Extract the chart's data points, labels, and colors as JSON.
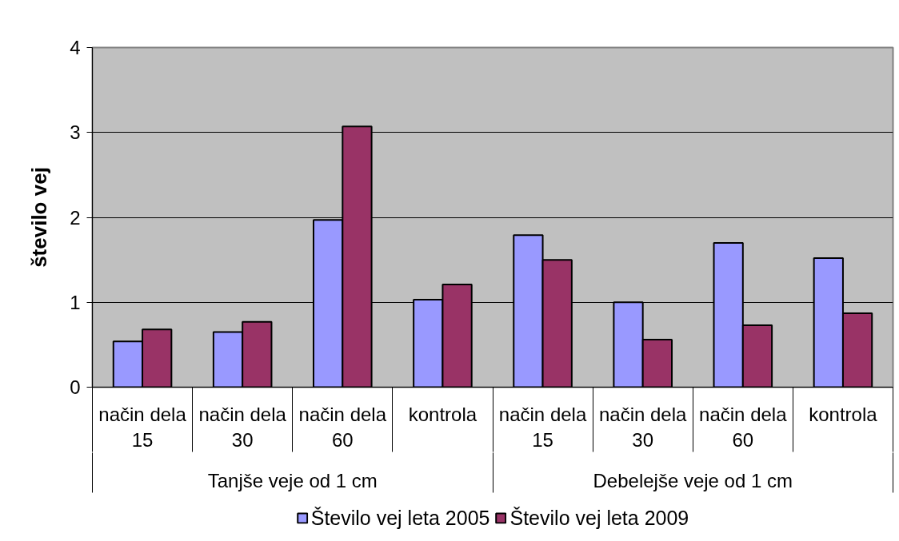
{
  "chart_data": {
    "type": "bar",
    "ylabel": "število vej",
    "categories": [
      "način dela 15",
      "način dela 30",
      "način dela 60",
      "kontrola",
      "način dela 15",
      "način dela 30",
      "način dela 60",
      "kontrola"
    ],
    "series": [
      {
        "name": "Število vej leta 2005",
        "color": "#9999ff",
        "values": [
          0.54,
          0.65,
          1.97,
          1.03,
          1.79,
          1.0,
          1.7,
          1.52
        ]
      },
      {
        "name": "Število vej leta 2009",
        "color": "#993366",
        "values": [
          0.68,
          0.77,
          3.07,
          1.21,
          1.5,
          0.56,
          0.73,
          0.87
        ]
      }
    ],
    "ylim": [
      0,
      4
    ],
    "yticks": [
      0,
      1,
      2,
      3,
      4
    ],
    "grid": "y",
    "legend": "bottom",
    "annotations": [
      "Tanjše veje od 1 cm",
      "Debelejše veje od 1 cm"
    ]
  }
}
